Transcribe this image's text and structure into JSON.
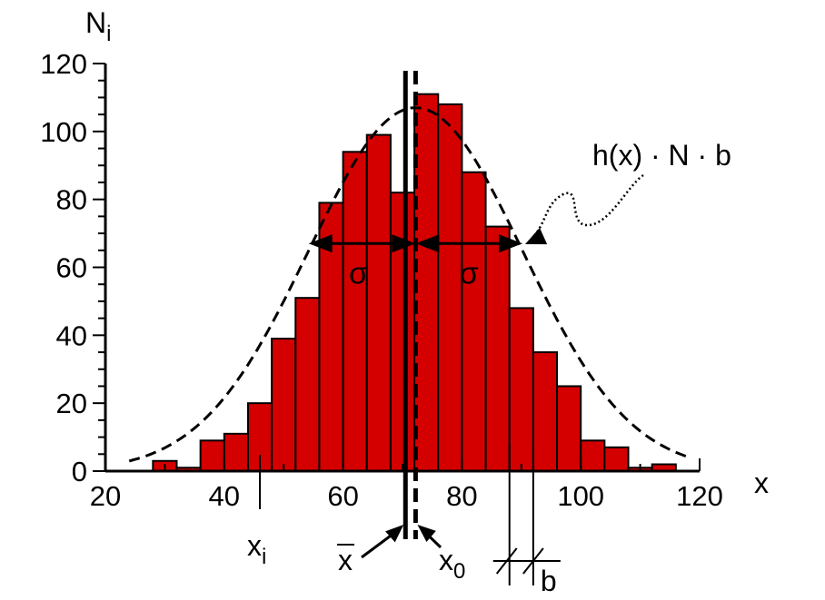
{
  "colors": {
    "bar_fill": "#d40000",
    "ink": "#000000",
    "background": "#ffffff"
  },
  "chart_data": {
    "type": "bar",
    "ylabel": "N",
    "ylabel_sub": "i",
    "xlabel": "x",
    "xlim": [
      20,
      120
    ],
    "ylim": [
      0,
      120
    ],
    "bin_width": 4,
    "x_ticks": [
      {
        "value": 20,
        "label": "20"
      },
      {
        "value": 40,
        "label": "40"
      },
      {
        "value": 60,
        "label": "60"
      },
      {
        "value": 80,
        "label": "80"
      },
      {
        "value": 100,
        "label": "100"
      },
      {
        "value": 120,
        "label": "120"
      }
    ],
    "y_ticks": [
      {
        "value": 0,
        "label": "0"
      },
      {
        "value": 20,
        "label": "20"
      },
      {
        "value": 40,
        "label": "40"
      },
      {
        "value": 60,
        "label": "60"
      },
      {
        "value": 80,
        "label": "80"
      },
      {
        "value": 100,
        "label": "100"
      },
      {
        "value": 120,
        "label": "120"
      }
    ],
    "bins": [
      {
        "start": 28,
        "value": 3
      },
      {
        "start": 32,
        "value": 1
      },
      {
        "start": 36,
        "value": 9
      },
      {
        "start": 40,
        "value": 11
      },
      {
        "start": 44,
        "value": 20
      },
      {
        "start": 48,
        "value": 39
      },
      {
        "start": 52,
        "value": 51
      },
      {
        "start": 56,
        "value": 79
      },
      {
        "start": 60,
        "value": 94
      },
      {
        "start": 64,
        "value": 99
      },
      {
        "start": 68,
        "value": 82
      },
      {
        "start": 72,
        "value": 111
      },
      {
        "start": 76,
        "value": 108
      },
      {
        "start": 80,
        "value": 88
      },
      {
        "start": 84,
        "value": 72
      },
      {
        "start": 88,
        "value": 48
      },
      {
        "start": 92,
        "value": 35
      },
      {
        "start": 96,
        "value": 25
      },
      {
        "start": 100,
        "value": 9
      },
      {
        "start": 104,
        "value": 7
      },
      {
        "start": 108,
        "value": 1
      },
      {
        "start": 112,
        "value": 2
      }
    ],
    "mean": 70.5,
    "mode_x0": 72.2,
    "sigma": 18,
    "sigma_arrow_y": 67,
    "fit_peak": 107,
    "fit_label": "h(x) · N · b",
    "sigma_label": "σ",
    "annotations": {
      "x_i": {
        "label": "x",
        "sub": "i",
        "x": 46
      },
      "x_bar": {
        "label": "x"
      },
      "x_0": {
        "label": "x",
        "sub": "0"
      },
      "b": {
        "label": "b",
        "from": 88,
        "to": 92
      }
    }
  }
}
